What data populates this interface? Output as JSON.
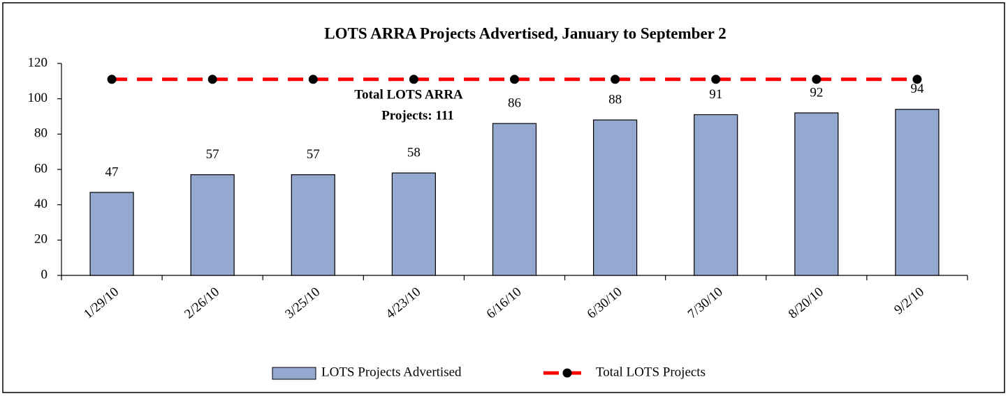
{
  "chart_data": {
    "type": "bar",
    "title": "LOTS ARRA Projects Advertised, January to September 2",
    "annotation": [
      "Total LOTS ARRA",
      "Projects: 111"
    ],
    "categories": [
      "1/29/10",
      "2/26/10",
      "3/25/10",
      "4/23/10",
      "6/16/10",
      "6/30/10",
      "7/30/10",
      "8/20/10",
      "9/2/10"
    ],
    "series": [
      {
        "name": "LOTS Projects Advertised",
        "type": "bar",
        "color": "#95a9d0",
        "values": [
          47,
          57,
          57,
          58,
          86,
          88,
          91,
          92,
          94
        ],
        "data_labels": true
      },
      {
        "name": "Total LOTS Projects",
        "type": "line",
        "color": "#ff0000",
        "marker_color": "#000000",
        "values": [
          111,
          111,
          111,
          111,
          111,
          111,
          111,
          111,
          111
        ],
        "data_labels": false
      }
    ],
    "ylim": [
      0,
      120
    ],
    "yticks": [
      0,
      20,
      40,
      60,
      80,
      100,
      120
    ],
    "grid": false,
    "legend": "bottom"
  }
}
